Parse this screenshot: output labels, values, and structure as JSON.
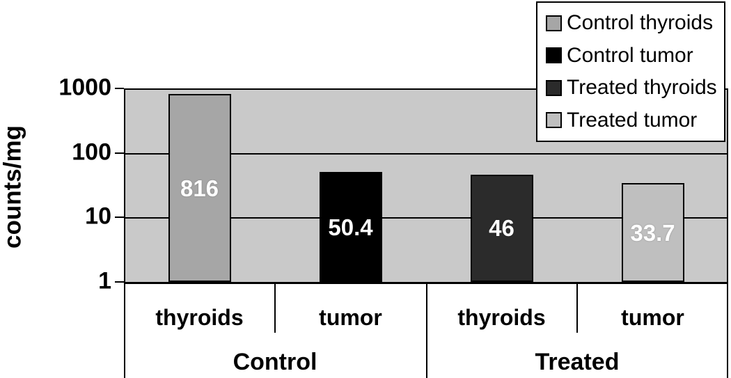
{
  "chart_data": {
    "type": "bar",
    "title": "",
    "ylabel": "counts/mg",
    "xlabel": "",
    "yscale": "log",
    "ylim": [
      1,
      1000
    ],
    "yticks": [
      "1000",
      "100",
      "10",
      "1"
    ],
    "grid": true,
    "plot_background": "#c9c9c9",
    "groups": [
      {
        "label": "Control",
        "categories": [
          "thyroids",
          "tumor"
        ]
      },
      {
        "label": "Treated",
        "categories": [
          "thyroids",
          "tumor"
        ]
      }
    ],
    "bars": [
      {
        "series": "Control thyroids",
        "group": "Control",
        "category": "thyroids",
        "value": 816,
        "value_label": "816",
        "color": "#a6a6a6"
      },
      {
        "series": "Control tumor",
        "group": "Control",
        "category": "tumor",
        "value": 50.4,
        "value_label": "50.4",
        "color": "#000000"
      },
      {
        "series": "Treated thyroids",
        "group": "Treated",
        "category": "thyroids",
        "value": 46,
        "value_label": "46",
        "color": "#2b2b2b"
      },
      {
        "series": "Treated tumor",
        "group": "Treated",
        "category": "tumor",
        "value": 33.7,
        "value_label": "33.7",
        "color": "#bfbfbf"
      }
    ],
    "legend": {
      "position": "top-right",
      "entries": [
        {
          "label": "Control thyroids",
          "color": "#a6a6a6"
        },
        {
          "label": "Control tumor",
          "color": "#000000"
        },
        {
          "label": "Treated thyroids",
          "color": "#2b2b2b"
        },
        {
          "label": "Treated tumor",
          "color": "#bfbfbf"
        }
      ]
    },
    "value_label_color": "#ffffff",
    "line_color": "#000000"
  }
}
